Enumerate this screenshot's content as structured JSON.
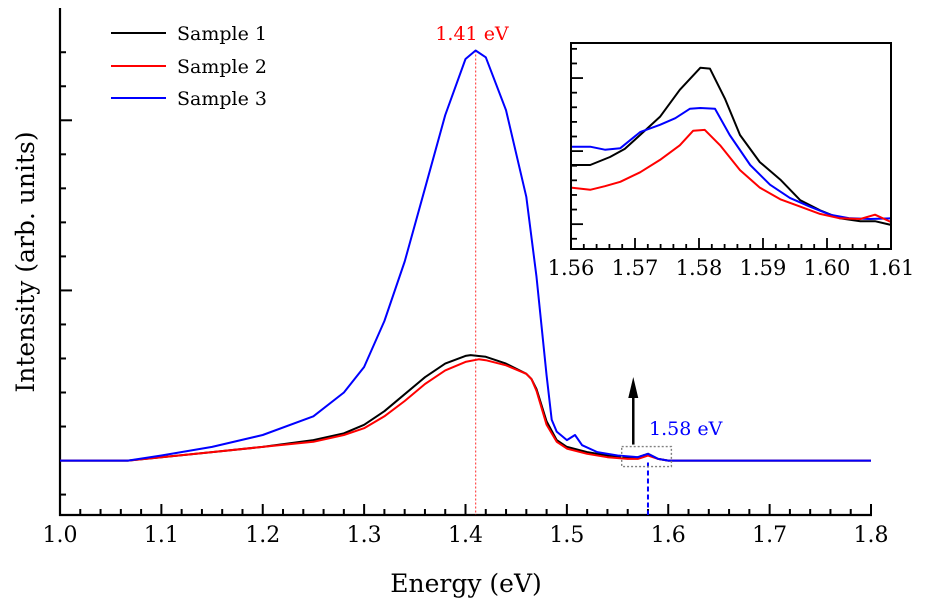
{
  "chart_data": [
    {
      "id": "main",
      "type": "line",
      "title": "",
      "xlabel": "Energy (eV)",
      "ylabel": "Intensity (arb. units)",
      "xlim": [
        1.0,
        1.8
      ],
      "ylim": [
        -0.32,
        2.66
      ],
      "x_major_ticks": [
        1.0,
        1.1,
        1.2,
        1.3,
        1.4,
        1.5,
        1.6,
        1.7,
        1.8
      ],
      "x_tick_labels": [
        "1.0",
        "1.1",
        "1.2",
        "1.3",
        "1.4",
        "1.5",
        "1.6",
        "1.7",
        "1.8"
      ],
      "x_minor_step": 0.02,
      "y_major_ticks": [
        1.0,
        2.0
      ],
      "y_minor_ticks": [
        -0.2,
        0.2,
        0.4,
        0.6,
        0.8,
        1.2,
        1.4,
        1.6,
        1.8,
        2.2,
        2.4
      ],
      "y_tick_labels_shown": false,
      "grid": false,
      "legend": {
        "placement": "top-left",
        "entries": [
          {
            "label": "Sample 1",
            "color": "#000000"
          },
          {
            "label": "Sample 2",
            "color": "#ff0000"
          },
          {
            "label": "Sample 3",
            "color": "#0000ff"
          }
        ]
      },
      "series": [
        {
          "name": "Sample 1",
          "color": "#000000",
          "x": [
            1.0,
            1.067,
            1.1,
            1.15,
            1.2,
            1.25,
            1.28,
            1.3,
            1.32,
            1.34,
            1.36,
            1.38,
            1.4,
            1.405,
            1.42,
            1.44,
            1.46,
            1.465,
            1.47,
            1.48,
            1.49,
            1.5,
            1.52,
            1.54,
            1.56,
            1.57,
            1.58,
            1.59,
            1.6,
            1.7,
            1.8
          ],
          "y": [
            0.0,
            0.0,
            0.02,
            0.05,
            0.08,
            0.12,
            0.16,
            0.21,
            0.29,
            0.39,
            0.49,
            0.57,
            0.615,
            0.62,
            0.61,
            0.57,
            0.51,
            0.48,
            0.42,
            0.23,
            0.12,
            0.08,
            0.05,
            0.03,
            0.02,
            0.02,
            0.04,
            0.01,
            0.0,
            0.0,
            0.0
          ]
        },
        {
          "name": "Sample 2",
          "color": "#ff0000",
          "x": [
            1.0,
            1.067,
            1.1,
            1.15,
            1.2,
            1.25,
            1.28,
            1.3,
            1.32,
            1.34,
            1.36,
            1.38,
            1.4,
            1.413,
            1.42,
            1.44,
            1.46,
            1.465,
            1.47,
            1.48,
            1.49,
            1.5,
            1.52,
            1.54,
            1.56,
            1.57,
            1.58,
            1.59,
            1.6,
            1.7,
            1.8
          ],
          "y": [
            0.0,
            0.0,
            0.02,
            0.05,
            0.08,
            0.11,
            0.15,
            0.19,
            0.26,
            0.35,
            0.45,
            0.53,
            0.58,
            0.595,
            0.59,
            0.56,
            0.51,
            0.48,
            0.41,
            0.21,
            0.11,
            0.07,
            0.04,
            0.02,
            0.01,
            0.01,
            0.03,
            0.01,
            0.0,
            0.0,
            0.0
          ]
        },
        {
          "name": "Sample 3",
          "color": "#0000ff",
          "x": [
            1.0,
            1.067,
            1.1,
            1.15,
            1.2,
            1.25,
            1.28,
            1.3,
            1.32,
            1.34,
            1.36,
            1.38,
            1.4,
            1.41,
            1.42,
            1.44,
            1.46,
            1.47,
            1.48,
            1.485,
            1.49,
            1.5,
            1.508,
            1.515,
            1.53,
            1.55,
            1.57,
            1.58,
            1.59,
            1.6,
            1.7,
            1.8
          ],
          "y": [
            0.0,
            0.0,
            0.03,
            0.08,
            0.15,
            0.26,
            0.4,
            0.55,
            0.82,
            1.17,
            1.6,
            2.03,
            2.36,
            2.41,
            2.37,
            2.06,
            1.55,
            1.08,
            0.5,
            0.24,
            0.17,
            0.12,
            0.15,
            0.09,
            0.05,
            0.03,
            0.02,
            0.04,
            0.01,
            0.0,
            0.0,
            0.0
          ]
        }
      ],
      "annotations": [
        {
          "text": "1.41 eV",
          "x": 1.41,
          "color": "#ff0000",
          "style": "dotted vertical line at peak"
        },
        {
          "text": "1.58 eV",
          "x": 1.58,
          "color": "#0000ff",
          "style": "dashed vertical line from baseline to axis"
        },
        {
          "type": "arrow",
          "direction": "up",
          "x": 1.565,
          "color": "#000000"
        },
        {
          "type": "dotted-box",
          "x_range": [
            1.56,
            1.61
          ],
          "color": "#808080"
        }
      ]
    },
    {
      "id": "inset",
      "type": "line",
      "title": "",
      "xlabel": "",
      "ylabel": "",
      "xlim": [
        1.56,
        1.61
      ],
      "ylim": [
        0,
        2.82
      ],
      "x_major_ticks": [
        1.56,
        1.57,
        1.58,
        1.59,
        1.6,
        1.61
      ],
      "x_tick_labels": [
        "1.56",
        "1.57",
        "1.58",
        "1.59",
        "1.60",
        "1.61"
      ],
      "x_minor_step": 0.002,
      "y_tick_step": 0.2,
      "y_major_ticks": [
        0.34,
        1.34,
        2.34
      ],
      "y_tick_labels_shown": false,
      "grid": false,
      "series": [
        {
          "name": "Sample 1",
          "color": "#000000",
          "x": [
            1.56,
            1.563,
            1.5661,
            1.5684,
            1.5708,
            1.5739,
            1.577,
            1.5802,
            1.5817,
            1.5841,
            1.5864,
            1.5895,
            1.5927,
            1.5958,
            1.5989,
            1.602,
            1.6052,
            1.6075,
            1.61
          ],
          "y": [
            1.15,
            1.15,
            1.26,
            1.37,
            1.56,
            1.81,
            2.18,
            2.48,
            2.47,
            2.05,
            1.56,
            1.19,
            0.95,
            0.67,
            0.53,
            0.42,
            0.38,
            0.38,
            0.33
          ]
        },
        {
          "name": "Sample 2",
          "color": "#ff0000",
          "x": [
            1.56,
            1.563,
            1.5653,
            1.5677,
            1.5708,
            1.5739,
            1.577,
            1.5791,
            1.5809,
            1.5833,
            1.5864,
            1.5895,
            1.5927,
            1.5958,
            1.5989,
            1.602,
            1.6052,
            1.6075,
            1.61
          ],
          "y": [
            0.84,
            0.81,
            0.86,
            0.92,
            1.05,
            1.22,
            1.42,
            1.62,
            1.63,
            1.42,
            1.08,
            0.84,
            0.68,
            0.58,
            0.48,
            0.42,
            0.41,
            0.47,
            0.37
          ]
        },
        {
          "name": "Sample 3",
          "color": "#0000ff",
          "x": [
            1.56,
            1.563,
            1.5653,
            1.5677,
            1.5708,
            1.5739,
            1.5763,
            1.5786,
            1.5802,
            1.5825,
            1.5848,
            1.588,
            1.5911,
            1.5942,
            1.5973,
            1.6005,
            1.6036,
            1.6067,
            1.61
          ],
          "y": [
            1.4,
            1.4,
            1.36,
            1.38,
            1.6,
            1.7,
            1.79,
            1.92,
            1.93,
            1.92,
            1.56,
            1.15,
            0.88,
            0.7,
            0.58,
            0.47,
            0.42,
            0.41,
            0.42
          ]
        }
      ]
    }
  ]
}
